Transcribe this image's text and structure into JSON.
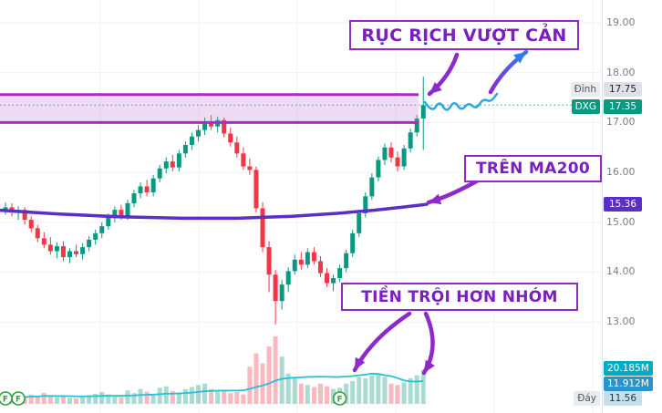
{
  "chart_data": {
    "type": "candlestick",
    "symbol": "DXG",
    "last_price": 17.35,
    "ylim": [
      11.56,
      19.0
    ],
    "axis": {
      "price_ticks": [
        "19.00",
        "18.00",
        "17.00",
        "16.00",
        "15.00",
        "14.00",
        "13.00"
      ],
      "peak": {
        "label": "Đỉnh",
        "value": "17.75"
      },
      "symbol_badge": {
        "label": "DXG",
        "value": "17.35"
      },
      "ma200_value": "15.36",
      "volume_value": "20.185M",
      "volume_ma_value": "11.912M",
      "bottom": {
        "label": "Đáy",
        "value": "11.56"
      }
    },
    "resistance_zone": {
      "top": 17.56,
      "bottom": 17.0
    },
    "candles": [
      [
        15.25,
        15.4,
        15.15,
        15.3
      ],
      [
        15.3,
        15.38,
        15.12,
        15.2
      ],
      [
        15.2,
        15.32,
        15.05,
        15.25
      ],
      [
        15.25,
        15.3,
        14.95,
        15.05
      ],
      [
        15.05,
        15.12,
        14.8,
        14.88
      ],
      [
        14.88,
        14.95,
        14.6,
        14.68
      ],
      [
        14.68,
        14.8,
        14.48,
        14.55
      ],
      [
        14.55,
        14.7,
        14.35,
        14.42
      ],
      [
        14.42,
        14.6,
        14.28,
        14.52
      ],
      [
        14.52,
        14.62,
        14.22,
        14.3
      ],
      [
        14.3,
        14.48,
        14.18,
        14.42
      ],
      [
        14.42,
        14.55,
        14.3,
        14.36
      ],
      [
        14.36,
        14.58,
        14.25,
        14.5
      ],
      [
        14.5,
        14.72,
        14.42,
        14.65
      ],
      [
        14.65,
        14.85,
        14.55,
        14.78
      ],
      [
        14.78,
        15.0,
        14.68,
        14.92
      ],
      [
        14.92,
        15.18,
        14.85,
        15.1
      ],
      [
        15.1,
        15.32,
        15.0,
        15.25
      ],
      [
        15.25,
        15.35,
        15.05,
        15.12
      ],
      [
        15.12,
        15.45,
        15.05,
        15.38
      ],
      [
        15.38,
        15.65,
        15.3,
        15.58
      ],
      [
        15.58,
        15.8,
        15.48,
        15.72
      ],
      [
        15.72,
        15.85,
        15.52,
        15.6
      ],
      [
        15.6,
        15.95,
        15.52,
        15.88
      ],
      [
        15.88,
        16.15,
        15.8,
        16.08
      ],
      [
        16.08,
        16.3,
        15.98,
        16.22
      ],
      [
        16.22,
        16.35,
        16.02,
        16.1
      ],
      [
        16.1,
        16.45,
        16.02,
        16.38
      ],
      [
        16.38,
        16.62,
        16.3,
        16.55
      ],
      [
        16.55,
        16.8,
        16.45,
        16.72
      ],
      [
        16.72,
        16.95,
        16.62,
        16.85
      ],
      [
        16.85,
        17.1,
        16.75,
        17.0
      ],
      [
        17.0,
        17.15,
        16.85,
        16.92
      ],
      [
        16.92,
        17.12,
        16.8,
        17.05
      ],
      [
        17.05,
        17.1,
        16.7,
        16.78
      ],
      [
        16.78,
        16.9,
        16.52,
        16.6
      ],
      [
        16.6,
        16.72,
        16.3,
        16.38
      ],
      [
        16.38,
        16.5,
        16.05,
        16.12
      ],
      [
        16.12,
        16.28,
        15.95,
        16.05
      ],
      [
        16.05,
        16.12,
        15.2,
        15.28
      ],
      [
        15.28,
        15.4,
        14.4,
        14.5
      ],
      [
        14.5,
        14.62,
        13.6,
        13.95
      ],
      [
        13.95,
        14.05,
        12.95,
        13.42
      ],
      [
        13.42,
        13.85,
        13.25,
        13.75
      ],
      [
        13.75,
        14.1,
        13.6,
        14.02
      ],
      [
        14.02,
        14.35,
        13.95,
        14.25
      ],
      [
        14.25,
        14.4,
        14.05,
        14.15
      ],
      [
        14.15,
        14.48,
        14.08,
        14.4
      ],
      [
        14.4,
        14.5,
        14.15,
        14.22
      ],
      [
        14.22,
        14.32,
        13.9,
        13.98
      ],
      [
        13.98,
        14.08,
        13.7,
        13.78
      ],
      [
        13.78,
        13.95,
        13.62,
        13.88
      ],
      [
        13.88,
        14.15,
        13.8,
        14.08
      ],
      [
        14.08,
        14.45,
        14.0,
        14.38
      ],
      [
        14.38,
        14.85,
        14.3,
        14.78
      ],
      [
        14.78,
        15.25,
        14.7,
        15.18
      ],
      [
        15.18,
        15.6,
        15.1,
        15.52
      ],
      [
        15.52,
        15.98,
        15.45,
        15.9
      ],
      [
        15.9,
        16.32,
        15.82,
        16.25
      ],
      [
        16.25,
        16.58,
        16.15,
        16.5
      ],
      [
        16.5,
        16.6,
        16.2,
        16.3
      ],
      [
        16.3,
        16.42,
        16.02,
        16.12
      ],
      [
        16.12,
        16.55,
        16.05,
        16.48
      ],
      [
        16.48,
        16.88,
        16.4,
        16.8
      ],
      [
        16.8,
        17.15,
        16.72,
        17.08
      ],
      [
        17.08,
        17.92,
        16.45,
        17.35
      ]
    ],
    "volumes": [
      5,
      3.5,
      4,
      3.8,
      5.5,
      4.5,
      6.5,
      5,
      4,
      5,
      3.6,
      3.2,
      4.4,
      5.2,
      6,
      7,
      5.6,
      4.8,
      4,
      8,
      6.4,
      8.8,
      7.2,
      6,
      9.6,
      10.4,
      7.6,
      6.8,
      8.8,
      10,
      11.2,
      12,
      8.8,
      7.2,
      8,
      6.4,
      7.2,
      5.6,
      22,
      30,
      24,
      34,
      40,
      28,
      18,
      15.2,
      12,
      11.2,
      10,
      12,
      10.4,
      8.8,
      9.6,
      12,
      13.6,
      16,
      15.2,
      16.8,
      18,
      16,
      12,
      11.2,
      12.8,
      15.2,
      17,
      20.185
    ],
    "ma200": [
      [
        0,
        15.24
      ],
      [
        60,
        15.17
      ],
      [
        130,
        15.11
      ],
      [
        200,
        15.08
      ],
      [
        260,
        15.08
      ],
      [
        320,
        15.12
      ],
      [
        370,
        15.18
      ],
      [
        410,
        15.24
      ],
      [
        440,
        15.3
      ],
      [
        468,
        15.36
      ]
    ],
    "markers": [
      {
        "index": 0,
        "label": "F"
      },
      {
        "index": 2,
        "label": "F"
      },
      {
        "index": 52,
        "label": "F"
      }
    ],
    "colors": {
      "up": "#089981",
      "down": "#f23645",
      "up_volume": "rgba(8,153,129,0.35)",
      "down_volume": "rgba(242,54,69,0.35)",
      "ma200": "#5b2ec9",
      "volume_ma": "#27c0d4",
      "zone_border": "#a82bc4",
      "zone_fill": "rgba(199,125,212,0.28)",
      "wave": "#2fa8e0",
      "arrow": "#8c2bc9",
      "arrow_gradient_end": "#2f80e8",
      "grid": "#eef1f6",
      "last_price_line": "#26a69a",
      "marker": "#2f9e44",
      "axis_border": "#e0e3eb"
    }
  },
  "annotations": {
    "breakout_label": "RỤC RỊCH VƯỢT CẢN",
    "ma200_label": "TRÊN MA200",
    "money_label": "TIỀN TRỘI HƠN NHÓM",
    "drawings": {
      "wave_points": [
        [
          466,
          112
        ],
        [
          474,
          124
        ],
        [
          482,
          110
        ],
        [
          490,
          124
        ],
        [
          498,
          110
        ],
        [
          506,
          122
        ],
        [
          514,
          112
        ],
        [
          522,
          120
        ],
        [
          530,
          108
        ],
        [
          538,
          112
        ],
        [
          545,
          103
        ]
      ],
      "arrows": [
        {
          "name": "breakout-arrow",
          "from": [
            501,
            60
          ],
          "ctrl": [
            493,
            84
          ],
          "to": [
            471,
            103
          ],
          "color": "purple"
        },
        {
          "name": "up-trend-arrow",
          "from": [
            538,
            101
          ],
          "ctrl": [
            551,
            77
          ],
          "to": [
            577,
            57
          ],
          "color": "gradient"
        },
        {
          "name": "ma200-arrow",
          "from": [
            524,
            198
          ],
          "ctrl": [
            494,
            215
          ],
          "to": [
            470,
            222
          ],
          "color": "purple"
        },
        {
          "name": "volume-arrow-left",
          "from": [
            449,
            344
          ],
          "ctrl": [
            407,
            372
          ],
          "to": [
            389,
            406
          ],
          "color": "purple"
        },
        {
          "name": "volume-arrow-right",
          "from": [
            467,
            344
          ],
          "ctrl": [
            483,
            380
          ],
          "to": [
            465,
            409
          ],
          "color": "purple"
        }
      ]
    }
  }
}
